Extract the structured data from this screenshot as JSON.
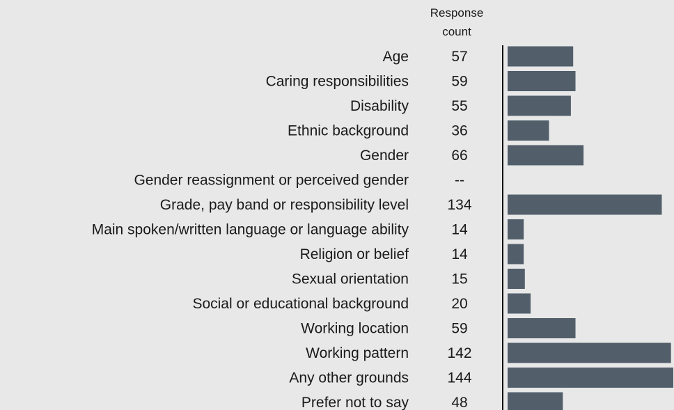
{
  "chart_data": {
    "type": "bar",
    "orientation": "horizontal",
    "column_header": [
      "Response",
      "count"
    ],
    "categories": [
      "Age",
      "Caring responsibilities",
      "Disability",
      "Ethnic background",
      "Gender",
      "Gender reassignment or perceived gender",
      "Grade, pay band or responsibility level",
      "Main spoken/written language or language ability",
      "Religion or belief",
      "Sexual orientation",
      "Social or educational background",
      "Working location",
      "Working pattern",
      "Any other grounds",
      "Prefer not to say"
    ],
    "values": [
      57,
      59,
      55,
      36,
      66,
      null,
      134,
      14,
      14,
      15,
      20,
      59,
      142,
      144,
      48
    ],
    "value_labels": [
      "57",
      "59",
      "55",
      "36",
      "66",
      "--",
      "134",
      "14",
      "14",
      "15",
      "20",
      "59",
      "142",
      "144",
      "48"
    ],
    "xlim": [
      0,
      144
    ],
    "bar_color": "#525f6b",
    "axis_line_color": "#111111",
    "background": "#e8e8e8",
    "grid": false,
    "legend": "none"
  }
}
